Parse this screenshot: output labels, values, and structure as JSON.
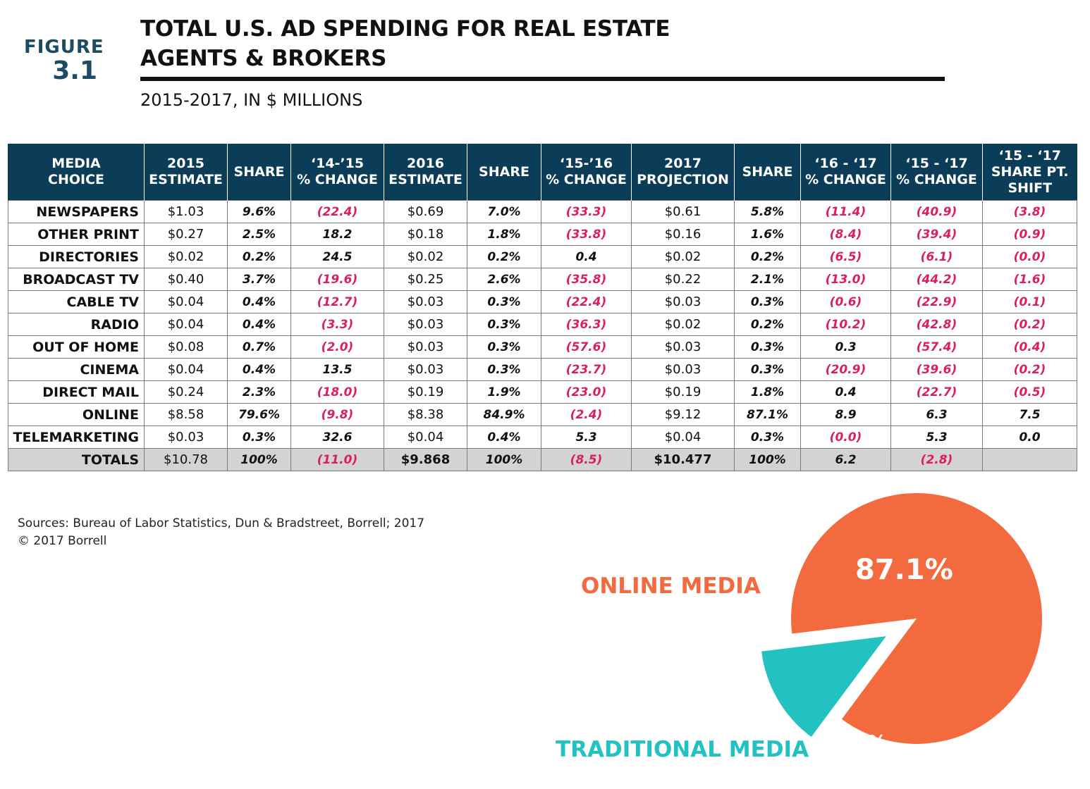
{
  "figure": {
    "word": "FIGURE",
    "number": "3.1"
  },
  "title_line1": "TOTAL U.S. AD SPENDING FOR REAL ESTATE",
  "title_line2": "AGENTS & BROKERS",
  "subtitle": "2015-2017, IN $ MILLIONS",
  "sources_line1": "Sources:  Bureau of Labor Statistics, Dun & Bradstreet, Borrell; 2017",
  "sources_line2": "© 2017 Borrell",
  "colors": {
    "header_bg": "#0b3c58",
    "negative": "#d91e63",
    "online": "#f36a3f",
    "traditional": "#21c2c1",
    "figure_label": "#1d4a64",
    "totals_bg": "#d3d3d3"
  },
  "chart_data": [
    {
      "type": "table",
      "columns": [
        [
          "MEDIA",
          "CHOICE"
        ],
        [
          "2015",
          "ESTIMATE"
        ],
        [
          "SHARE"
        ],
        [
          "‘14-’15",
          "% CHANGE"
        ],
        [
          "2016",
          "ESTIMATE"
        ],
        [
          "SHARE"
        ],
        [
          "‘15-’16",
          "% CHANGE"
        ],
        [
          "2017",
          "PROJECTION"
        ],
        [
          "SHARE"
        ],
        [
          "‘16 - ‘17",
          "% CHANGE"
        ],
        [
          "‘15 - ‘17",
          "% CHANGE"
        ],
        [
          "‘15 - ‘17",
          "SHARE PT.",
          "SHIFT"
        ]
      ],
      "rows": [
        [
          "NEWSPAPERS",
          "$1.03",
          "9.6%",
          "(22.4)",
          "$0.69",
          "7.0%",
          "(33.3)",
          "$0.61",
          "5.8%",
          "(11.4)",
          "(40.9)",
          "(3.8)"
        ],
        [
          "OTHER PRINT",
          "$0.27",
          "2.5%",
          "18.2",
          "$0.18",
          "1.8%",
          "(33.8)",
          "$0.16",
          "1.6%",
          "(8.4)",
          "(39.4)",
          "(0.9)"
        ],
        [
          "DIRECTORIES",
          "$0.02",
          "0.2%",
          "24.5",
          "$0.02",
          "0.2%",
          "0.4",
          "$0.02",
          "0.2%",
          "(6.5)",
          "(6.1)",
          "(0.0)"
        ],
        [
          "BROADCAST TV",
          "$0.40",
          "3.7%",
          "(19.6)",
          "$0.25",
          "2.6%",
          "(35.8)",
          "$0.22",
          "2.1%",
          "(13.0)",
          "(44.2)",
          "(1.6)"
        ],
        [
          "CABLE TV",
          "$0.04",
          "0.4%",
          "(12.7)",
          "$0.03",
          "0.3%",
          "(22.4)",
          "$0.03",
          "0.3%",
          "(0.6)",
          "(22.9)",
          "(0.1)"
        ],
        [
          "RADIO",
          "$0.04",
          "0.4%",
          "(3.3)",
          "$0.03",
          "0.3%",
          "(36.3)",
          "$0.02",
          "0.2%",
          "(10.2)",
          "(42.8)",
          "(0.2)"
        ],
        [
          "OUT OF HOME",
          "$0.08",
          "0.7%",
          "(2.0)",
          "$0.03",
          "0.3%",
          "(57.6)",
          "$0.03",
          "0.3%",
          "0.3",
          "(57.4)",
          "(0.4)"
        ],
        [
          "CINEMA",
          "$0.04",
          "0.4%",
          "13.5",
          "$0.03",
          "0.3%",
          "(23.7)",
          "$0.03",
          "0.3%",
          "(20.9)",
          "(39.6)",
          "(0.2)"
        ],
        [
          "DIRECT MAIL",
          "$0.24",
          "2.3%",
          "(18.0)",
          "$0.19",
          "1.9%",
          "(23.0)",
          "$0.19",
          "1.8%",
          "0.4",
          "(22.7)",
          "(0.5)"
        ],
        [
          "ONLINE",
          "$8.58",
          "79.6%",
          "(9.8)",
          "$8.38",
          "84.9%",
          "(2.4)",
          "$9.12",
          "87.1%",
          "8.9",
          "6.3",
          "7.5"
        ],
        [
          "TELEMARKETING",
          "$0.03",
          "0.3%",
          "32.6",
          "$0.04",
          "0.4%",
          "5.3",
          "$0.04",
          "0.3%",
          "(0.0)",
          "5.3",
          "0.0"
        ]
      ],
      "totals": [
        "TOTALS",
        "$10.78",
        "100%",
        "(11.0)",
        "$9.868",
        "100%",
        "(8.5)",
        "$10.477",
        "100%",
        "6.2",
        "(2.8)",
        ""
      ]
    },
    {
      "type": "pie",
      "slices": [
        {
          "label": "ONLINE MEDIA",
          "value": 87.1,
          "value_label": "87.1%",
          "color": "#f36a3f"
        },
        {
          "label": "TRADITIONAL MEDIA",
          "value": 12.9,
          "value_label": "12.9%",
          "color": "#21c2c1"
        }
      ]
    }
  ]
}
